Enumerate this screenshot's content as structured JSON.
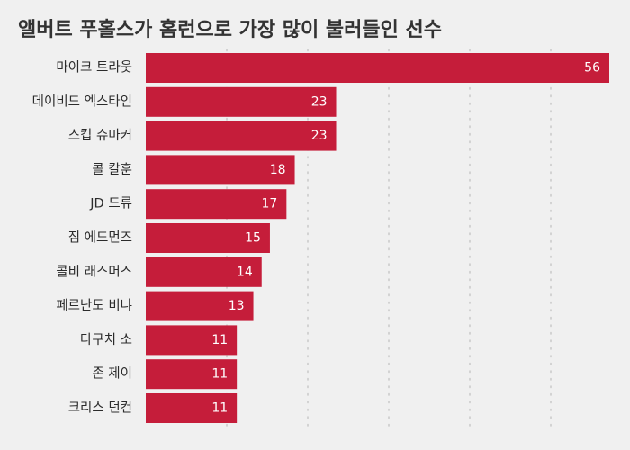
{
  "chart_data": {
    "type": "bar",
    "orientation": "horizontal",
    "title": "앨버트 푸홀스가 홈런으로 가장 많이 불러들인 선수",
    "xlabel": "",
    "ylabel": "",
    "xlim": [
      0,
      56
    ],
    "grid": true,
    "colors": {
      "bar": "#c51d3a",
      "background": "#f0f0f0",
      "grid": "#c8c8c8",
      "title": "#333333",
      "value_label": "#ffffff"
    },
    "categories": [
      "마이크 트라웃",
      "데이비드 엑스타인",
      "스킵 슈마커",
      "콜 칼훈",
      "JD 드류",
      "짐 에드먼즈",
      "콜비 래스머스",
      "페르난도 비냐",
      "다구치 소",
      "존 제이",
      "크리스 던컨"
    ],
    "values": [
      56,
      23,
      23,
      18,
      17,
      15,
      14,
      13,
      11,
      11,
      11
    ]
  }
}
